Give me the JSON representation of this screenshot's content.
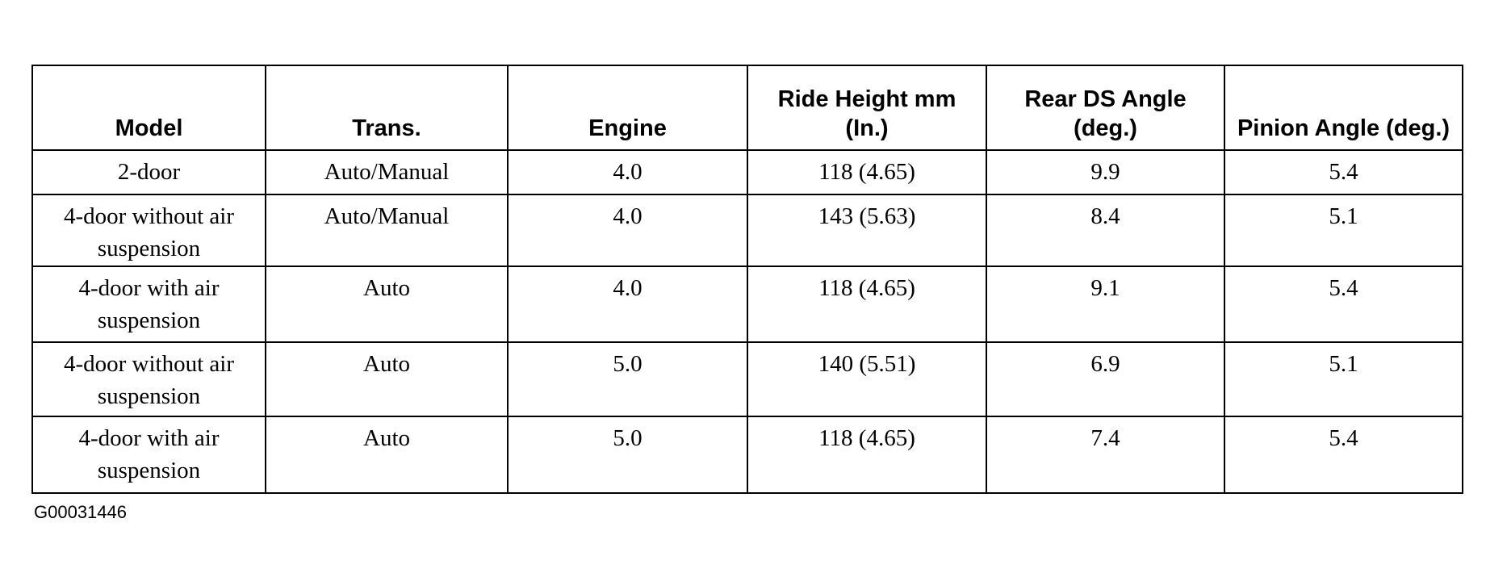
{
  "table": {
    "header": [
      "Model",
      "Trans.",
      "Engine",
      "Ride Height mm (In.)",
      "Rear DS Angle (deg.)",
      "Pinion Angle (deg.)"
    ],
    "rows": [
      [
        "2-door",
        "Auto/Manual",
        "4.0",
        "118 (4.65)",
        "9.9",
        "5.4"
      ],
      [
        "4-door without air suspension",
        "Auto/Manual",
        "4.0",
        "143 (5.63)",
        "8.4",
        "5.1"
      ],
      [
        "4-door with air suspension",
        "Auto",
        "4.0",
        "118 (4.65)",
        "9.1",
        "5.4"
      ],
      [
        "4-door without air suspension",
        "Auto",
        "5.0",
        "140 (5.51)",
        "6.9",
        "5.1"
      ],
      [
        "4-door with air suspension",
        "Auto",
        "5.0",
        "118 (4.65)",
        "7.4",
        "5.4"
      ]
    ]
  },
  "footer": {
    "code": "G00031446"
  }
}
